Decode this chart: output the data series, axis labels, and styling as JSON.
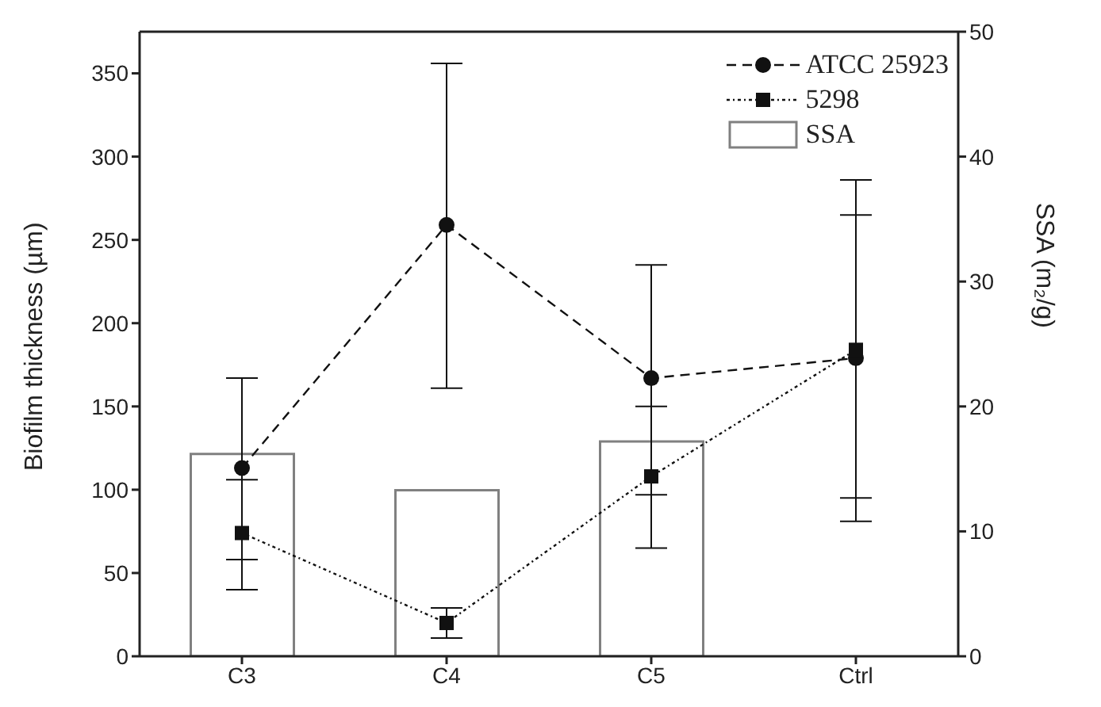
{
  "chart_data": {
    "type": "line",
    "categories": [
      "C3",
      "C4",
      "C5",
      "Ctrl"
    ],
    "ylabel": "Biofilm thickness (µm)",
    "y2label": "SSA (m₂/g)",
    "ylim": [
      0,
      375
    ],
    "yticks": [
      0,
      50,
      100,
      150,
      200,
      250,
      300,
      350
    ],
    "y2lim": [
      0,
      50
    ],
    "y2ticks": [
      0,
      10,
      20,
      30,
      40,
      50
    ],
    "legend": "top right",
    "grid": false,
    "series": [
      {
        "name": "ATCC 25923",
        "color": "#111111",
        "marker": "circle",
        "line_style": "dashed",
        "values": [
          113,
          259,
          167,
          179
        ],
        "errors": [
          [
            40,
            167
          ],
          [
            161,
            356
          ],
          [
            65,
            235
          ],
          [
            81,
            286
          ]
        ]
      },
      {
        "name": "5298",
        "color": "#111111",
        "marker": "square",
        "line_style": "dotted",
        "values": [
          74,
          20,
          108,
          184
        ],
        "errors": [
          [
            58,
            106
          ],
          [
            11,
            29
          ],
          [
            97,
            150
          ],
          [
            95,
            265
          ]
        ]
      },
      {
        "name": "SSA",
        "type": "bar",
        "axis": "y2",
        "color": "#808080",
        "values": [
          16.2,
          13.3,
          17.2,
          null
        ]
      }
    ]
  }
}
